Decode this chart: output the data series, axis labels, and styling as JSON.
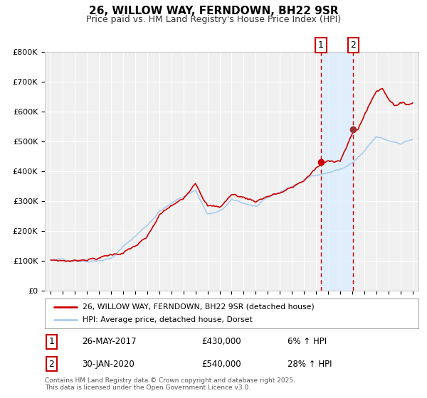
{
  "title": "26, WILLOW WAY, FERNDOWN, BH22 9SR",
  "subtitle": "Price paid vs. HM Land Registry's House Price Index (HPI)",
  "footer": "Contains HM Land Registry data © Crown copyright and database right 2025.\nThis data is licensed under the Open Government Licence v3.0.",
  "legend_line1": "26, WILLOW WAY, FERNDOWN, BH22 9SR (detached house)",
  "legend_line2": "HPI: Average price, detached house, Dorset",
  "annotation1_label": "1",
  "annotation1_date": "26-MAY-2017",
  "annotation1_price": "£430,000",
  "annotation1_hpi": "6% ↑ HPI",
  "annotation2_label": "2",
  "annotation2_date": "30-JAN-2020",
  "annotation2_price": "£540,000",
  "annotation2_hpi": "28% ↑ HPI",
  "ylim": [
    0,
    800000
  ],
  "ytick_labels": [
    "£0",
    "£100K",
    "£200K",
    "£300K",
    "£400K",
    "£500K",
    "£600K",
    "£700K",
    "£800K"
  ],
  "ytick_values": [
    0,
    100000,
    200000,
    300000,
    400000,
    500000,
    600000,
    700000,
    800000
  ],
  "background_color": "#ffffff",
  "plot_bg_color": "#f0f0f0",
  "red_line_color": "#cc0000",
  "blue_line_color": "#aaccee",
  "vline1_x": 2017.4,
  "vline2_x": 2020.08,
  "shade_color": "#ddeeff",
  "marker1_x": 2017.4,
  "marker1_y": 430000,
  "marker2_x": 2020.08,
  "marker2_y": 540000,
  "xlim_start": 1994.5,
  "xlim_end": 2025.5
}
